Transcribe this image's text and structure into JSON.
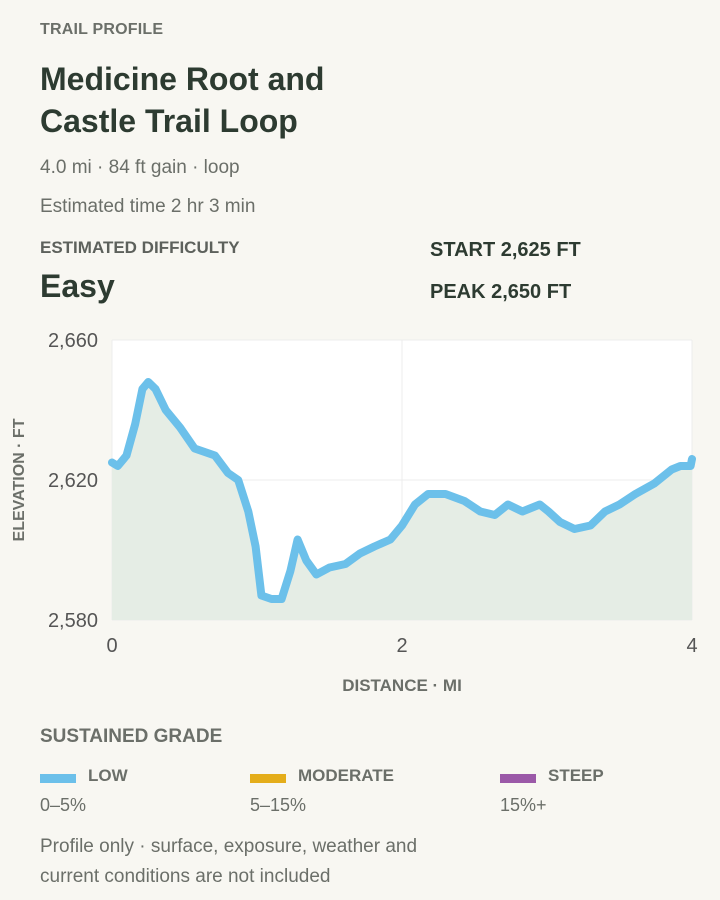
{
  "header": {
    "eyebrow": "TRAIL PROFILE",
    "title": "Medicine Root and Castle Trail Loop",
    "stats": "4.0 mi · 84 ft gain · loop",
    "time": "Estimated time 2 hr 3 min"
  },
  "difficulty": {
    "label": "ESTIMATED DIFFICULTY",
    "value": "Easy",
    "start": "START 2,625 FT",
    "peak": "PEAK 2,650 FT"
  },
  "chart_data": {
    "type": "line",
    "xlabel": "DISTANCE · MI",
    "ylabel": "ELEVATION · FT",
    "color": "#6cc0ea",
    "fill": "#e5ede5",
    "grid": true,
    "x": [
      0,
      0.04,
      0.1,
      0.16,
      0.21,
      0.25,
      0.3,
      0.37,
      0.47,
      0.57,
      0.71,
      0.8,
      0.87,
      0.94,
      0.99,
      1.03,
      1.1,
      1.17,
      1.23,
      1.28,
      1.34,
      1.41,
      1.5,
      1.61,
      1.71,
      1.81,
      1.92,
      2.0,
      2.09,
      2.18,
      2.3,
      2.43,
      2.54,
      2.64,
      2.73,
      2.83,
      2.95,
      3.01,
      3.09,
      3.19,
      3.3,
      3.4,
      3.5,
      3.61,
      3.74,
      3.86,
      3.92,
      3.99,
      4.0
    ],
    "values": [
      2625,
      2624,
      2627,
      2636,
      2646,
      2648,
      2646,
      2640,
      2635,
      2629,
      2627,
      2622,
      2620,
      2611,
      2601,
      2587,
      2586,
      2586,
      2594,
      2603,
      2597,
      2593,
      2595,
      2596,
      2599,
      2601,
      2603,
      2607,
      2613,
      2616,
      2616,
      2614,
      2611,
      2610,
      2613,
      2611,
      2613,
      2611,
      2608,
      2606,
      2607,
      2611,
      2613,
      2616,
      2619,
      2623,
      2624,
      2624,
      2626
    ],
    "xlim": [
      0,
      4
    ],
    "xticks": [
      0,
      2,
      4
    ],
    "ylim": [
      2580,
      2660
    ],
    "yticks": [
      {
        "value": 2580,
        "label": "2,580"
      },
      {
        "value": 2620,
        "label": "2,620"
      },
      {
        "value": 2660,
        "label": "2,660"
      }
    ]
  },
  "grade_legend": {
    "title": "SUSTAINED GRADE",
    "items": [
      {
        "name": "LOW",
        "range": "0–5%",
        "color": "#6cc0ea"
      },
      {
        "name": "MODERATE",
        "range": "5–15%",
        "color": "#e4ad1a"
      },
      {
        "name": "STEEP",
        "range": "15%+",
        "color": "#9b59a8"
      }
    ]
  },
  "note": "Profile only · surface, exposure, weather and current conditions are not included"
}
